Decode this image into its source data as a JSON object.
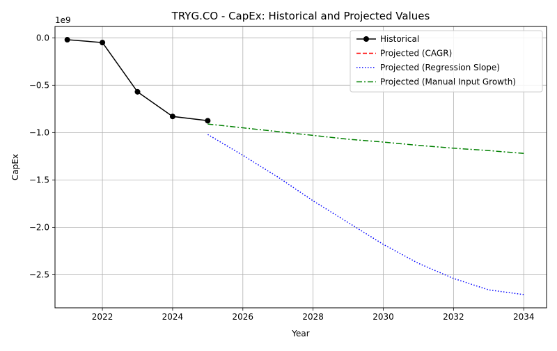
{
  "chart_data": {
    "type": "line",
    "title": "TRYG.CO - CapEx: Historical and Projected Values",
    "xlabel": "Year",
    "ylabel": "CapEx",
    "y_multiplier_label": "1e9",
    "xlim": [
      2020.65,
      2034.65
    ],
    "ylim": [
      -2.85,
      0.12
    ],
    "x_ticks": [
      2022,
      2024,
      2026,
      2028,
      2030,
      2032,
      2034
    ],
    "y_ticks": [
      0.0,
      -0.5,
      -1.0,
      -1.5,
      -2.0,
      -2.5
    ],
    "y_tick_labels": [
      "0.0",
      "−0.5",
      "−1.0",
      "−1.5",
      "−2.0",
      "−2.5"
    ],
    "grid": true,
    "legend_position": "top-right",
    "series": [
      {
        "name": "Historical",
        "color": "#000000",
        "style": "solid-with-markers",
        "x": [
          2021,
          2022,
          2023,
          2024,
          2025
        ],
        "y": [
          -0.02,
          -0.05,
          -0.57,
          -0.83,
          -0.875
        ]
      },
      {
        "name": "Projected (CAGR)",
        "color": "#ff0000",
        "style": "dashed",
        "x": [],
        "y": []
      },
      {
        "name": "Projected (Regression Slope)",
        "color": "#0000ff",
        "style": "dotted",
        "x": [
          2025,
          2026,
          2027,
          2028,
          2029,
          2030,
          2031,
          2032,
          2033,
          2034
        ],
        "y": [
          -1.02,
          -1.24,
          -1.47,
          -1.72,
          -1.95,
          -2.18,
          -2.38,
          -2.54,
          -2.66,
          -2.71
        ]
      },
      {
        "name": "Projected (Manual Input Growth)",
        "color": "#008000",
        "style": "dashdot",
        "x": [
          2025,
          2026,
          2027,
          2028,
          2029,
          2030,
          2031,
          2032,
          2033,
          2034
        ],
        "y": [
          -0.91,
          -0.95,
          -0.99,
          -1.03,
          -1.07,
          -1.1,
          -1.135,
          -1.165,
          -1.19,
          -1.22
        ]
      }
    ]
  }
}
